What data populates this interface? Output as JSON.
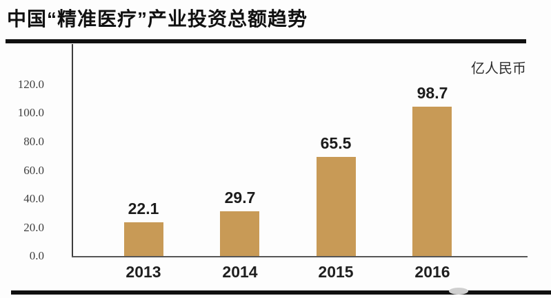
{
  "page": {
    "title": "中国“精准医疗”产业投资总额趋势",
    "unit_label": "亿人民币"
  },
  "chart_data": {
    "type": "bar",
    "title": "中国“精准医疗”产业投资总额趋势",
    "unit": "亿人民币",
    "categories": [
      "2013",
      "2014",
      "2015",
      "2016"
    ],
    "values": [
      22.1,
      29.7,
      65.5,
      98.7
    ],
    "value_labels": [
      "22.1",
      "29.7",
      "65.5",
      "98.7"
    ],
    "yticks": [
      0,
      20,
      40,
      60,
      80,
      100,
      120
    ],
    "ytick_labels": [
      "0.0",
      "20.0",
      "40.0",
      "60.0",
      "80.0",
      "100.0",
      "120.0"
    ],
    "ylim": [
      0,
      120
    ],
    "xlabel": "",
    "ylabel": "",
    "grid": false,
    "legend": false,
    "bar_color": "#C89A56",
    "axis_color": "#3c3c3c",
    "text_color": "#1c1c1c"
  }
}
